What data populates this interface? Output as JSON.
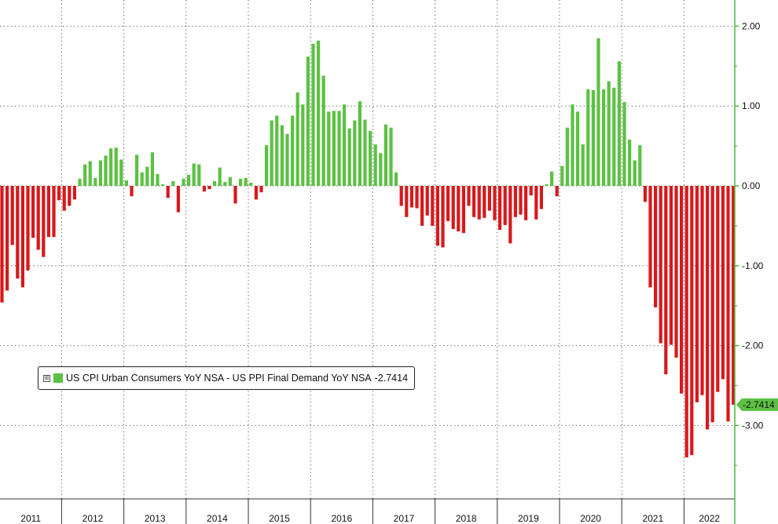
{
  "colors": {
    "positive": "#5cc143",
    "negative": "#d7191c",
    "axis": "#49b83a",
    "grid": "#555555",
    "year_axis": "#333333"
  },
  "legend": {
    "expander": "⊞",
    "label": "US CPI Urban Consumers YoY NSA - US PPI Final Demand YoY NSA",
    "last_value": "-2.7414"
  },
  "chart_data": {
    "type": "bar",
    "title": "",
    "xlabel": "",
    "ylabel": "",
    "x_start": "2011-01",
    "ylim": [
      -3.75,
      2.3
    ],
    "y_ticks": [
      2,
      1,
      0,
      -1,
      -2,
      -3
    ],
    "y_tick_labels": [
      "2.00",
      "1.00",
      "0.00",
      "-1.00",
      "-2.00",
      "-3.00"
    ],
    "x_tick_labels": [
      "2011",
      "2012",
      "2013",
      "2014",
      "2015",
      "2016",
      "2017",
      "2018",
      "2019",
      "2020",
      "2021",
      "2022"
    ],
    "grid": true,
    "legend_position": "lower-left",
    "last_value_label": "-2.7414",
    "series": [
      {
        "name": "US CPI Urban Consumers YoY NSA - US PPI Final Demand YoY NSA",
        "values": [
          -1.46,
          -1.31,
          -0.74,
          -1.16,
          -1.27,
          -1.06,
          -0.65,
          -0.8,
          -0.89,
          -0.64,
          -0.64,
          -0.18,
          -0.31,
          -0.25,
          -0.17,
          0.09,
          0.27,
          0.31,
          0.1,
          0.32,
          0.38,
          0.47,
          0.48,
          0.33,
          0.07,
          -0.13,
          0.39,
          0.17,
          0.24,
          0.42,
          0.15,
          0.02,
          -0.15,
          0.06,
          -0.33,
          0.09,
          0.14,
          0.28,
          0.27,
          -0.07,
          -0.04,
          0.06,
          0.23,
          0.05,
          0.11,
          -0.22,
          0.09,
          0.1,
          0.04,
          -0.17,
          -0.08,
          0.51,
          0.82,
          0.88,
          0.76,
          0.65,
          0.88,
          1.17,
          1.02,
          1.62,
          1.78,
          1.82,
          1.38,
          0.93,
          0.94,
          0.94,
          1.02,
          0.72,
          0.82,
          1.06,
          0.83,
          0.69,
          0.52,
          0.41,
          0.77,
          0.73,
          0.17,
          -0.25,
          -0.39,
          -0.27,
          -0.28,
          -0.5,
          -0.37,
          -0.5,
          -0.75,
          -0.77,
          -0.44,
          -0.54,
          -0.57,
          -0.59,
          -0.25,
          -0.39,
          -0.42,
          -0.4,
          -0.31,
          -0.43,
          -0.55,
          -0.49,
          -0.72,
          -0.39,
          -0.36,
          -0.43,
          -0.12,
          -0.42,
          -0.29,
          0.02,
          0.18,
          -0.13,
          0.25,
          0.73,
          1.02,
          0.93,
          0.52,
          1.21,
          1.2,
          1.85,
          1.21,
          1.31,
          1.23,
          1.56,
          1.05,
          0.58,
          0.32,
          0.51,
          -0.2,
          -1.27,
          -1.52,
          -1.97,
          -2.36,
          -1.99,
          -2.15,
          -2.6,
          -3.4,
          -3.37,
          -2.71,
          -2.62,
          -3.05,
          -2.96,
          -2.58,
          -2.42,
          -2.95,
          -2.74
        ]
      }
    ]
  }
}
